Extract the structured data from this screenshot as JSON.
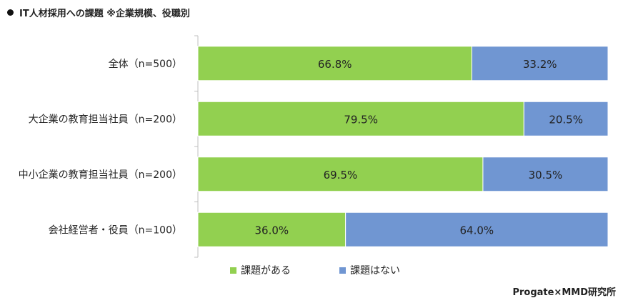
{
  "title": "IT人材採用への課題 ※企業規模、役職別",
  "source": "Progate×MMD研究所",
  "colors": {
    "yes": "#92d050",
    "no": "#7096d2"
  },
  "chart_data": {
    "type": "bar",
    "orientation": "horizontal",
    "stacked": true,
    "percent": true,
    "categories": [
      "全体（n=500）",
      "大企業の教育担当社員（n=200）",
      "中小企業の教育担当社員（n=200）",
      "会社経営者・役員（n=100）"
    ],
    "series": [
      {
        "name": "課題がある",
        "values": [
          66.8,
          79.5,
          69.5,
          36.0
        ],
        "labels": [
          "66.8%",
          "79.5%",
          "69.5%",
          "36.0%"
        ]
      },
      {
        "name": "課題はない",
        "values": [
          33.2,
          20.5,
          30.5,
          64.0
        ],
        "labels": [
          "33.2%",
          "20.5%",
          "30.5%",
          "64.0%"
        ]
      }
    ],
    "xlim": [
      0,
      100
    ],
    "legend": "bottom",
    "grid": false
  }
}
